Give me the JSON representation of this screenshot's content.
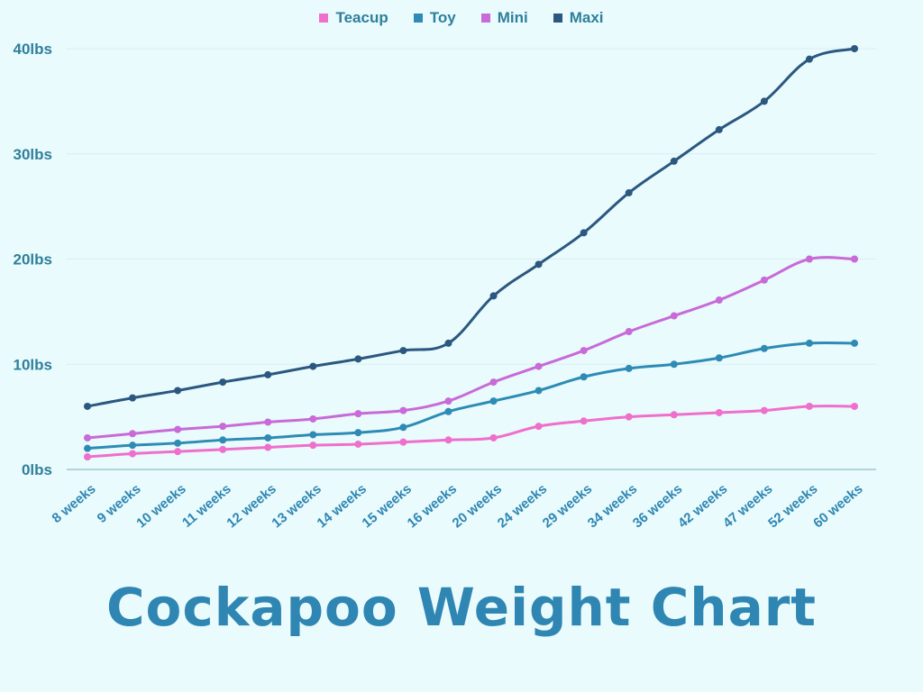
{
  "chart_data": {
    "type": "line",
    "title": "Cockapoo Weight Chart",
    "xlabel": "",
    "ylabel": "",
    "categories": [
      "8 weeks",
      "9 weeks",
      "10 weeks",
      "11 weeks",
      "12 weeks",
      "13 weeks",
      "14 weeks",
      "15 weeks",
      "16 weeks",
      "20 weeks",
      "24 weeks",
      "29 weeks",
      "34 weeks",
      "36 weeks",
      "42 weeks",
      "47 weeks",
      "52 weeks",
      "60 weeks"
    ],
    "yticks": [
      "0lbs",
      "10lbs",
      "20lbs",
      "30lbs",
      "40lbs"
    ],
    "ylim": [
      0,
      40
    ],
    "grid": true,
    "legend_position": "top-center",
    "series": [
      {
        "name": "Teacup",
        "color": "#ef6fcc",
        "values": [
          1.2,
          1.5,
          1.7,
          1.9,
          2.1,
          2.3,
          2.4,
          2.6,
          2.8,
          3.0,
          4.1,
          4.6,
          5.0,
          5.2,
          5.4,
          5.6,
          6.0,
          6.0
        ]
      },
      {
        "name": "Toy",
        "color": "#2e8bb5",
        "values": [
          2.0,
          2.3,
          2.5,
          2.8,
          3.0,
          3.3,
          3.5,
          4.0,
          5.5,
          6.5,
          7.5,
          8.8,
          9.6,
          10.0,
          10.6,
          11.5,
          12.0,
          12.0
        ]
      },
      {
        "name": "Mini",
        "color": "#c86ad8",
        "values": [
          3.0,
          3.4,
          3.8,
          4.1,
          4.5,
          4.8,
          5.3,
          5.6,
          6.5,
          8.3,
          9.8,
          11.3,
          13.1,
          14.6,
          16.1,
          18.0,
          20.0,
          20.0
        ]
      },
      {
        "name": "Maxi",
        "color": "#2b5780",
        "values": [
          6.0,
          6.8,
          7.5,
          8.3,
          9.0,
          9.8,
          10.5,
          11.3,
          12.0,
          16.5,
          19.5,
          22.5,
          26.3,
          29.3,
          32.3,
          35.0,
          39.0,
          40.0
        ]
      }
    ]
  }
}
